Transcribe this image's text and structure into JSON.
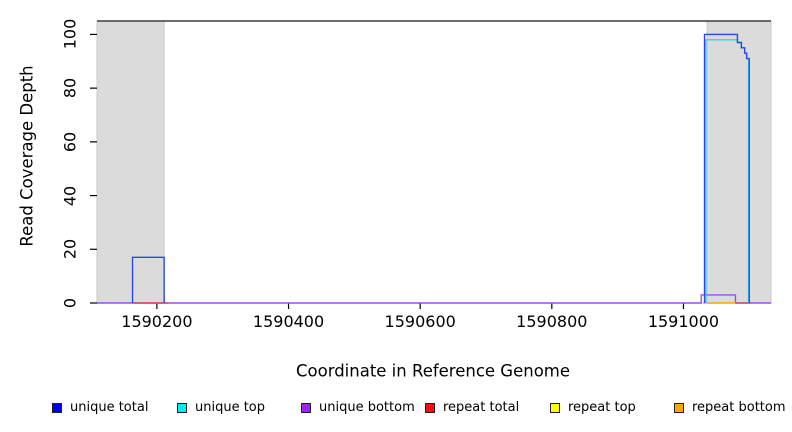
{
  "figure_name": "read-coverage-depth-plot",
  "chart_data": {
    "type": "line",
    "title": "",
    "xlabel": "Coordinate in Reference Genome",
    "ylabel": "Read Coverage Depth",
    "xlim": [
      1590109,
      1591133
    ],
    "ylim": [
      0,
      105
    ],
    "x_ticks": [
      1590200,
      1590400,
      1590600,
      1590800,
      1591000
    ],
    "x_tick_labels": [
      "1590200",
      "1590400",
      "1590600",
      "1590800",
      "1591000"
    ],
    "y_ticks": [
      0,
      20,
      40,
      60,
      80,
      100
    ],
    "y_tick_labels": [
      "0",
      "20",
      "40",
      "60",
      "80",
      "100"
    ],
    "grid": false,
    "legend_position": "bottom",
    "colors": {
      "background": "#FFFFFF",
      "repeat_region_fill": "#DBDBDB",
      "repeat_region_border": "#C9C9C9",
      "top_border": "#3C3C3C",
      "axis": "#000000"
    },
    "repeat_regions": [
      [
        1590109,
        1590211
      ],
      [
        1591036,
        1591133
      ]
    ],
    "top_border_value": 105,
    "series": [
      {
        "name": "unique total",
        "color": "#0000EE",
        "stroke": "#2B49E1",
        "z": 6,
        "segments": [
          [
            [
              1590163,
              0
            ],
            [
              1590163,
              17
            ],
            [
              1590211,
              17
            ],
            [
              1590211,
              0
            ]
          ],
          [
            [
              1591032,
              0
            ],
            [
              1591032,
              100
            ],
            [
              1591082,
              100
            ],
            [
              1591082,
              97
            ],
            [
              1591088,
              97
            ],
            [
              1591088,
              95
            ],
            [
              1591093,
              95
            ],
            [
              1591093,
              93
            ],
            [
              1591096,
              93
            ],
            [
              1591096,
              91
            ],
            [
              1591100,
              91
            ],
            [
              1591100,
              0
            ]
          ]
        ]
      },
      {
        "name": "unique top",
        "color": "#00EEEE",
        "stroke": "#2BD8EC",
        "z": 5,
        "segments": [
          [
            [
              1591034,
              0
            ],
            [
              1591034,
              98
            ],
            [
              1591082,
              98
            ],
            [
              1591082,
              97
            ],
            [
              1591088,
              97
            ],
            [
              1591088,
              95
            ],
            [
              1591093,
              95
            ],
            [
              1591093,
              93
            ],
            [
              1591096,
              93
            ],
            [
              1591096,
              91
            ],
            [
              1591099,
              91
            ],
            [
              1591099,
              0
            ]
          ]
        ]
      },
      {
        "name": "unique bottom",
        "color": "#A020F0",
        "stroke": "#9C4BF2",
        "z": 1,
        "segments": [
          [
            [
              1590109,
              0
            ],
            [
              1591027,
              0
            ],
            [
              1591027,
              3
            ],
            [
              1591079,
              3
            ],
            [
              1591079,
              0
            ],
            [
              1591133,
              0
            ]
          ]
        ]
      },
      {
        "name": "repeat total",
        "color": "#EE1111",
        "stroke": "#E4485E",
        "z": 2,
        "segments": [
          [
            [
              1590163,
              0
            ],
            [
              1590216,
              0
            ]
          ],
          [
            [
              1591079,
              0
            ],
            [
              1591102,
              0
            ]
          ]
        ]
      },
      {
        "name": "repeat top",
        "color": "#FFFF00",
        "stroke": "#FFE800",
        "z": 3,
        "segments": []
      },
      {
        "name": "repeat bottom",
        "color": "#FFA500",
        "stroke": "#FFA114",
        "z": 4,
        "segments": [
          [
            [
              1591030,
              0
            ],
            [
              1591079,
              0
            ]
          ]
        ]
      }
    ]
  }
}
